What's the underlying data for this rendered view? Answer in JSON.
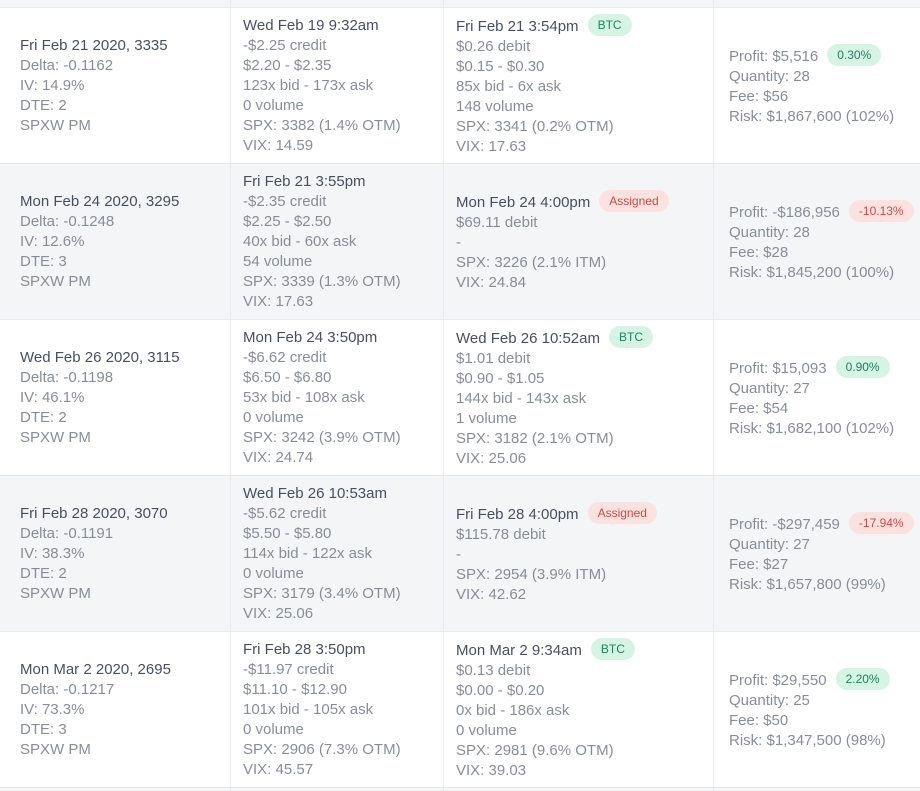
{
  "colors": {
    "title_text": "#47505e",
    "body_text": "#878e98",
    "row_alt_bg": "#f4f5f6",
    "border": "#e8eaed",
    "badge_green_bg": "#d5f4e3",
    "badge_green_text": "#1f8465",
    "badge_red_bg": "#fbe2e0",
    "badge_red_text": "#cc4a42"
  },
  "rows": [
    {
      "alt": false,
      "position": {
        "title": "Fri Feb 21 2020, 3335",
        "lines": [
          "Delta: -0.1162",
          "IV: 14.9%",
          "DTE: 2",
          "SPXW PM"
        ]
      },
      "open": {
        "title": "Wed Feb 19 9:32am",
        "lines": [
          "-$2.25 credit",
          "$2.20 - $2.35",
          "123x bid - 173x ask",
          "0 volume",
          "SPX: 3382 (1.4% OTM)",
          "VIX: 14.59"
        ]
      },
      "close": {
        "title": "Fri Feb 21 3:54pm",
        "badge": "BTC",
        "badge_type": "green",
        "lines": [
          "$0.26 debit",
          "$0.15 - $0.30",
          "85x bid - 6x ask",
          "148 volume",
          "SPX: 3341 (0.2% OTM)",
          "VIX: 17.63"
        ]
      },
      "summary": {
        "profit": "Profit: $5,516",
        "badge": "0.30%",
        "badge_type": "green",
        "lines": [
          "Quantity: 28",
          "Fee: $56",
          "Risk: $1,867,600 (102%)"
        ]
      }
    },
    {
      "alt": true,
      "position": {
        "title": "Mon Feb 24 2020, 3295",
        "lines": [
          "Delta: -0.1248",
          "IV: 12.6%",
          "DTE: 3",
          "SPXW PM"
        ]
      },
      "open": {
        "title": "Fri Feb 21 3:55pm",
        "lines": [
          "-$2.35 credit",
          "$2.25 - $2.50",
          "40x bid - 60x ask",
          "54 volume",
          "SPX: 3339 (1.3% OTM)",
          "VIX: 17.63"
        ]
      },
      "close": {
        "title": "Mon Feb 24 4:00pm",
        "badge": "Assigned",
        "badge_type": "red",
        "lines": [
          "$69.11 debit",
          "-",
          "SPX: 3226 (2.1% ITM)",
          "VIX: 24.84"
        ]
      },
      "summary": {
        "profit": "Profit: -$186,956",
        "badge": "-10.13%",
        "badge_type": "red",
        "lines": [
          "Quantity: 28",
          "Fee: $28",
          "Risk: $1,845,200 (100%)"
        ]
      }
    },
    {
      "alt": false,
      "position": {
        "title": "Wed Feb 26 2020, 3115",
        "lines": [
          "Delta: -0.1198",
          "IV: 46.1%",
          "DTE: 2",
          "SPXW PM"
        ]
      },
      "open": {
        "title": "Mon Feb 24 3:50pm",
        "lines": [
          "-$6.62 credit",
          "$6.50 - $6.80",
          "53x bid - 108x ask",
          "0 volume",
          "SPX: 3242 (3.9% OTM)",
          "VIX: 24.74"
        ]
      },
      "close": {
        "title": "Wed Feb 26 10:52am",
        "badge": "BTC",
        "badge_type": "green",
        "lines": [
          "$1.01 debit",
          "$0.90 - $1.05",
          "144x bid - 143x ask",
          "1 volume",
          "SPX: 3182 (2.1% OTM)",
          "VIX: 25.06"
        ]
      },
      "summary": {
        "profit": "Profit: $15,093",
        "badge": "0.90%",
        "badge_type": "green",
        "lines": [
          "Quantity: 27",
          "Fee: $54",
          "Risk: $1,682,100 (102%)"
        ]
      }
    },
    {
      "alt": true,
      "position": {
        "title": "Fri Feb 28 2020, 3070",
        "lines": [
          "Delta: -0.1191",
          "IV: 38.3%",
          "DTE: 2",
          "SPXW PM"
        ]
      },
      "open": {
        "title": "Wed Feb 26 10:53am",
        "lines": [
          "-$5.62 credit",
          "$5.50 - $5.80",
          "114x bid - 122x ask",
          "0 volume",
          "SPX: 3179 (3.4% OTM)",
          "VIX: 25.06"
        ]
      },
      "close": {
        "title": "Fri Feb 28 4:00pm",
        "badge": "Assigned",
        "badge_type": "red",
        "lines": [
          "$115.78 debit",
          "-",
          "SPX: 2954 (3.9% ITM)",
          "VIX: 42.62"
        ]
      },
      "summary": {
        "profit": "Profit: -$297,459",
        "badge": "-17.94%",
        "badge_type": "red",
        "lines": [
          "Quantity: 27",
          "Fee: $27",
          "Risk: $1,657,800 (99%)"
        ]
      }
    },
    {
      "alt": false,
      "position": {
        "title": "Mon Mar 2 2020, 2695",
        "lines": [
          "Delta: -0.1217",
          "IV: 73.3%",
          "DTE: 3",
          "SPXW PM"
        ]
      },
      "open": {
        "title": "Fri Feb 28 3:50pm",
        "lines": [
          "-$11.97 credit",
          "$11.10 - $12.90",
          "101x bid - 105x ask",
          "0 volume",
          "SPX: 2906 (7.3% OTM)",
          "VIX: 45.57"
        ]
      },
      "close": {
        "title": "Mon Mar 2 9:34am",
        "badge": "BTC",
        "badge_type": "green",
        "lines": [
          "$0.13 debit",
          "$0.00 - $0.20",
          "0x bid - 186x ask",
          "0 volume",
          "SPX: 2981 (9.6% OTM)",
          "VIX: 39.03"
        ]
      },
      "summary": {
        "profit": "Profit: $29,550",
        "badge": "2.20%",
        "badge_type": "green",
        "lines": [
          "Quantity: 25",
          "Fee: $50",
          "Risk: $1,347,500 (98%)"
        ]
      }
    }
  ]
}
